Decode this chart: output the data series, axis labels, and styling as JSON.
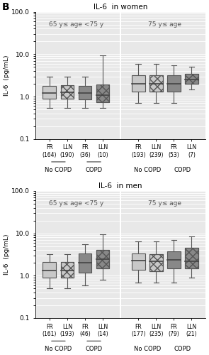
{
  "panel_title_top": "IL-6  in women",
  "panel_title_bottom": "IL-6  in men",
  "ylabel": "IL-6  (pg/mL)",
  "ylim_log": [
    0.1,
    100.0
  ],
  "yticks": [
    0.1,
    1.0,
    10.0,
    100.0
  ],
  "yticklabels": [
    "0.1",
    "1.0",
    "10.0",
    "100.0"
  ],
  "age_label_left": "65 y≤ age <75 y",
  "age_label_right": "75 y≤ age",
  "panel_label": "B",
  "background_color": "#e8e8e8",
  "groups": {
    "women": {
      "left_group": {
        "boxes": [
          {
            "label": "FR\n(164)",
            "group": "No COPD",
            "median": 1.2,
            "q1": 0.9,
            "q3": 1.8,
            "whislo": 0.55,
            "whishi": 3.0,
            "style": "solid",
            "color": "#c8c8c8"
          },
          {
            "label": "LLN\n(190)",
            "group": "No COPD",
            "median": 1.25,
            "q1": 0.9,
            "q3": 1.85,
            "whislo": 0.55,
            "whishi": 3.0,
            "style": "hatch",
            "color": "#c8c8c8"
          },
          {
            "label": "FR\n(36)",
            "group": "COPD",
            "median": 1.2,
            "q1": 0.85,
            "q3": 1.8,
            "whislo": 0.55,
            "whishi": 3.0,
            "style": "solid",
            "color": "#888888"
          },
          {
            "label": "LLN\n(10)",
            "group": "COPD",
            "median": 1.1,
            "q1": 0.75,
            "q3": 1.9,
            "whislo": 0.55,
            "whishi": 9.5,
            "style": "hatch",
            "color": "#888888"
          }
        ]
      },
      "right_group": {
        "boxes": [
          {
            "label": "FR\n(193)",
            "group": "No COPD",
            "median": 2.0,
            "q1": 1.3,
            "q3": 3.2,
            "whislo": 0.7,
            "whishi": 6.0,
            "style": "solid",
            "color": "#c8c8c8"
          },
          {
            "label": "LLN\n(239)",
            "group": "No COPD",
            "median": 2.0,
            "q1": 1.3,
            "q3": 3.2,
            "whislo": 0.7,
            "whishi": 6.0,
            "style": "hatch",
            "color": "#c8c8c8"
          },
          {
            "label": "FR\n(53)",
            "group": "COPD",
            "median": 2.0,
            "q1": 1.3,
            "q3": 3.2,
            "whislo": 0.7,
            "whishi": 5.5,
            "style": "solid",
            "color": "#888888"
          },
          {
            "label": "LLN\n(7)",
            "group": "COPD",
            "median": 2.5,
            "q1": 2.0,
            "q3": 3.5,
            "whislo": 1.5,
            "whishi": 5.0,
            "style": "hatch",
            "color": "#888888"
          }
        ]
      }
    },
    "men": {
      "left_group": {
        "boxes": [
          {
            "label": "FR\n(161)",
            "group": "No COPD",
            "median": 1.35,
            "q1": 0.9,
            "q3": 2.1,
            "whislo": 0.5,
            "whishi": 3.2,
            "style": "solid",
            "color": "#c8c8c8"
          },
          {
            "label": "LLN\n(193)",
            "group": "No COPD",
            "median": 1.35,
            "q1": 0.9,
            "q3": 2.1,
            "whislo": 0.5,
            "whishi": 3.2,
            "style": "hatch",
            "color": "#c8c8c8"
          },
          {
            "label": "FR\n(46)",
            "group": "COPD",
            "median": 2.0,
            "q1": 1.2,
            "q3": 3.3,
            "whislo": 0.6,
            "whishi": 5.5,
            "style": "solid",
            "color": "#888888"
          },
          {
            "label": "LLN\n(14)",
            "group": "COPD",
            "median": 2.5,
            "q1": 1.5,
            "q3": 4.0,
            "whislo": 0.8,
            "whishi": 9.5,
            "style": "hatch",
            "color": "#888888"
          }
        ]
      },
      "right_group": {
        "boxes": [
          {
            "label": "FR\n(177)",
            "group": "No COPD",
            "median": 2.3,
            "q1": 1.4,
            "q3": 3.3,
            "whislo": 0.7,
            "whishi": 6.5,
            "style": "solid",
            "color": "#c8c8c8"
          },
          {
            "label": "LLN\n(235)",
            "group": "No COPD",
            "median": 2.2,
            "q1": 1.3,
            "q3": 3.2,
            "whislo": 0.7,
            "whishi": 6.5,
            "style": "hatch",
            "color": "#c8c8c8"
          },
          {
            "label": "FR\n(79)",
            "group": "COPD",
            "median": 2.4,
            "q1": 1.5,
            "q3": 3.8,
            "whislo": 0.7,
            "whishi": 7.0,
            "style": "solid",
            "color": "#888888"
          },
          {
            "label": "LLN\n(21)",
            "group": "COPD",
            "median": 2.2,
            "q1": 1.5,
            "q3": 4.5,
            "whislo": 0.9,
            "whishi": 8.5,
            "style": "hatch",
            "color": "#888888"
          }
        ]
      }
    }
  }
}
